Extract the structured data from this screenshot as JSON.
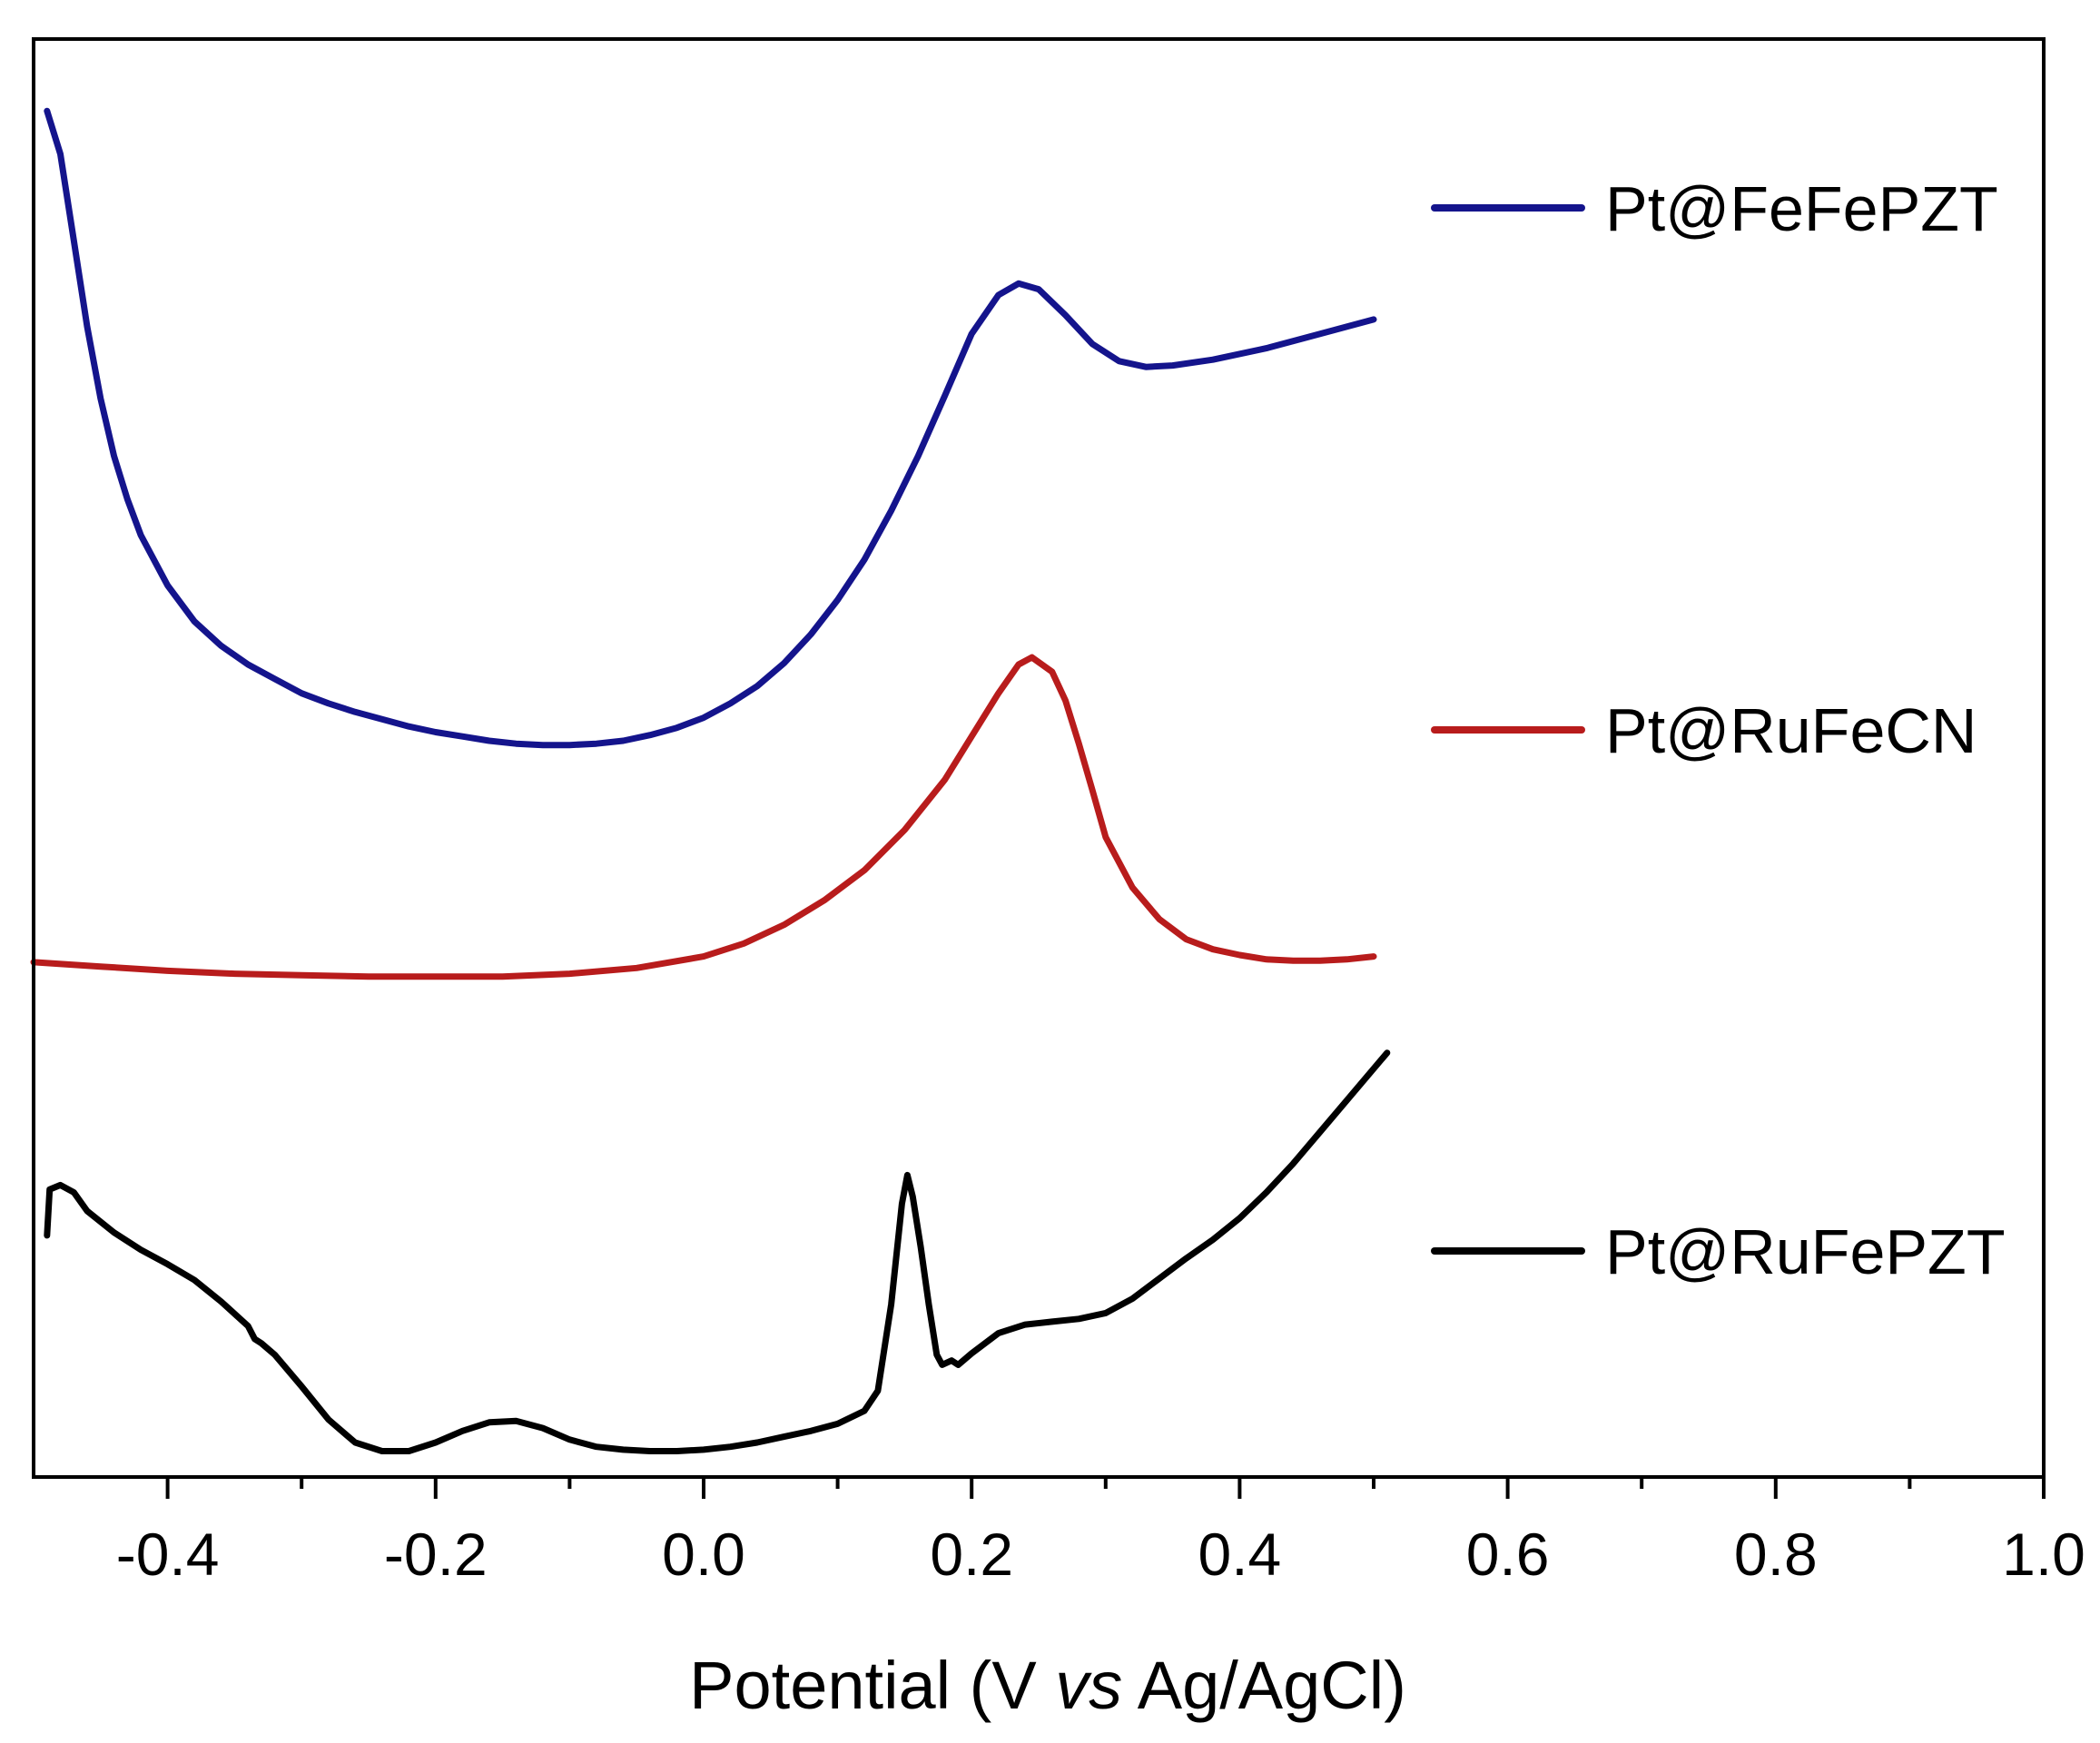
{
  "chart_data": {
    "type": "line",
    "title": "",
    "xlabel_parts": [
      "Potential (V ",
      "vs",
      " Ag/AgCl)"
    ],
    "ylabel": "",
    "xlim": [
      -0.5,
      1.0
    ],
    "xticks": [
      -0.4,
      -0.2,
      0.0,
      0.2,
      0.4,
      0.6,
      0.8,
      1.0
    ],
    "xtick_labels": [
      "-0.4",
      "-0.2",
      "0.0",
      "0.2",
      "0.4",
      "0.6",
      "0.8",
      "1.0"
    ],
    "xminor_ticks": [
      -0.3,
      -0.1,
      0.1,
      0.3,
      0.5,
      0.7,
      0.9
    ],
    "ylim": [
      0,
      1
    ],
    "grid": false,
    "legend_position": "right",
    "series": [
      {
        "name": "Pt@FeFePZT",
        "color": "#14148c",
        "x": [
          -0.49,
          -0.48,
          -0.47,
          -0.46,
          -0.45,
          -0.44,
          -0.43,
          -0.42,
          -0.4,
          -0.38,
          -0.36,
          -0.34,
          -0.32,
          -0.3,
          -0.28,
          -0.26,
          -0.24,
          -0.22,
          -0.2,
          -0.18,
          -0.16,
          -0.14,
          -0.12,
          -0.1,
          -0.08,
          -0.06,
          -0.04,
          -0.02,
          0.0,
          0.02,
          0.04,
          0.06,
          0.08,
          0.1,
          0.12,
          0.14,
          0.16,
          0.18,
          0.2,
          0.22,
          0.235,
          0.25,
          0.27,
          0.29,
          0.31,
          0.33,
          0.35,
          0.38,
          0.42,
          0.46,
          0.5
        ],
        "y": [
          0.95,
          0.92,
          0.86,
          0.8,
          0.75,
          0.71,
          0.68,
          0.655,
          0.62,
          0.595,
          0.578,
          0.565,
          0.555,
          0.545,
          0.538,
          0.532,
          0.527,
          0.522,
          0.518,
          0.515,
          0.512,
          0.51,
          0.509,
          0.509,
          0.51,
          0.512,
          0.516,
          0.521,
          0.528,
          0.538,
          0.55,
          0.566,
          0.586,
          0.61,
          0.638,
          0.672,
          0.71,
          0.752,
          0.795,
          0.822,
          0.83,
          0.826,
          0.808,
          0.788,
          0.776,
          0.772,
          0.773,
          0.777,
          0.785,
          0.795,
          0.805
        ]
      },
      {
        "name": "Pt@RuFeCN",
        "color": "#b81c1c",
        "x": [
          -0.5,
          -0.45,
          -0.4,
          -0.35,
          -0.3,
          -0.25,
          -0.2,
          -0.15,
          -0.1,
          -0.05,
          0.0,
          0.03,
          0.06,
          0.09,
          0.12,
          0.15,
          0.18,
          0.2,
          0.22,
          0.235,
          0.245,
          0.26,
          0.27,
          0.28,
          0.29,
          0.3,
          0.32,
          0.34,
          0.36,
          0.38,
          0.4,
          0.42,
          0.44,
          0.46,
          0.48,
          0.5
        ],
        "y": [
          0.358,
          0.355,
          0.352,
          0.35,
          0.349,
          0.348,
          0.348,
          0.348,
          0.35,
          0.354,
          0.362,
          0.371,
          0.384,
          0.401,
          0.422,
          0.45,
          0.485,
          0.515,
          0.545,
          0.565,
          0.57,
          0.56,
          0.54,
          0.51,
          0.478,
          0.445,
          0.41,
          0.388,
          0.374,
          0.367,
          0.363,
          0.36,
          0.359,
          0.359,
          0.36,
          0.362
        ]
      },
      {
        "name": "Pt@RuFePZT",
        "color": "#000000",
        "x": [
          -0.49,
          -0.488,
          -0.48,
          -0.47,
          -0.46,
          -0.44,
          -0.42,
          -0.4,
          -0.38,
          -0.36,
          -0.34,
          -0.335,
          -0.33,
          -0.32,
          -0.3,
          -0.28,
          -0.26,
          -0.24,
          -0.22,
          -0.2,
          -0.18,
          -0.16,
          -0.14,
          -0.12,
          -0.1,
          -0.08,
          -0.06,
          -0.04,
          -0.02,
          0.0,
          0.02,
          0.04,
          0.06,
          0.08,
          0.1,
          0.12,
          0.13,
          0.14,
          0.148,
          0.152,
          0.156,
          0.162,
          0.168,
          0.174,
          0.178,
          0.185,
          0.19,
          0.2,
          0.22,
          0.24,
          0.26,
          0.28,
          0.3,
          0.32,
          0.34,
          0.36,
          0.38,
          0.4,
          0.42,
          0.44,
          0.46,
          0.48,
          0.51
        ],
        "y": [
          0.168,
          0.2,
          0.203,
          0.198,
          0.185,
          0.17,
          0.158,
          0.148,
          0.137,
          0.122,
          0.105,
          0.096,
          0.093,
          0.085,
          0.063,
          0.04,
          0.024,
          0.018,
          0.018,
          0.024,
          0.032,
          0.038,
          0.039,
          0.034,
          0.026,
          0.021,
          0.019,
          0.018,
          0.018,
          0.019,
          0.021,
          0.024,
          0.028,
          0.032,
          0.037,
          0.046,
          0.06,
          0.12,
          0.19,
          0.21,
          0.195,
          0.16,
          0.12,
          0.085,
          0.078,
          0.081,
          0.078,
          0.086,
          0.1,
          0.106,
          0.108,
          0.11,
          0.114,
          0.124,
          0.138,
          0.152,
          0.165,
          0.18,
          0.198,
          0.218,
          0.24,
          0.262,
          0.295
        ]
      }
    ]
  }
}
